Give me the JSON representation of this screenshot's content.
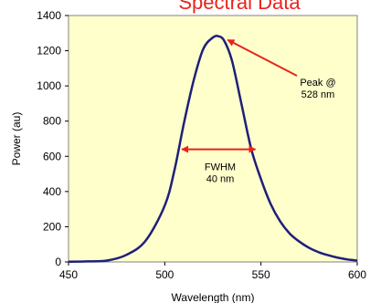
{
  "chart_data": {
    "type": "line",
    "title": "Spectral Data",
    "xlabel": "Wavelength (nm)",
    "ylabel": "Power (au)",
    "xlim": [
      450,
      600
    ],
    "ylim": [
      0,
      1400
    ],
    "x_ticks": [
      "450",
      "500",
      "550",
      "600"
    ],
    "y_ticks": [
      "0",
      "200",
      "400",
      "600",
      "800",
      "1000",
      "1200",
      "1400"
    ],
    "grid": false,
    "plot_background": "#ffffcc",
    "series": [
      {
        "color": "#1f1f7a",
        "x": [
          450,
          460,
          470,
          480,
          490,
          500,
          505,
          510,
          515,
          520,
          525,
          528,
          531,
          535,
          540,
          545,
          550,
          555,
          560,
          565,
          570,
          575,
          580,
          585,
          590,
          595,
          600
        ],
        "y": [
          1,
          3,
          8,
          40,
          120,
          320,
          520,
          790,
          1030,
          1210,
          1275,
          1282,
          1255,
          1140,
          890,
          640,
          470,
          330,
          230,
          160,
          115,
          80,
          55,
          38,
          24,
          14,
          8
        ]
      }
    ],
    "annotations": [
      {
        "text": [
          "Peak @",
          "528 nm"
        ],
        "x": 528,
        "y": 1282
      },
      {
        "text": [
          "FWHM",
          "40 nm"
        ],
        "x_range": [
          508,
          548
        ],
        "y": 640
      }
    ],
    "arrow_color": "#e8241c"
  }
}
